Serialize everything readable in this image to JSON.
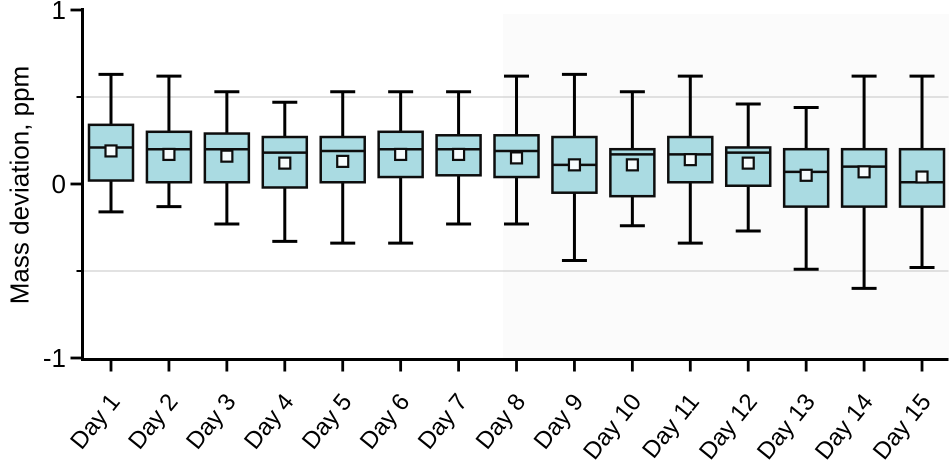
{
  "figure": {
    "background_color": "#ffffff",
    "right_region_tint": "rgba(0,0,0,0.016)"
  },
  "chart_data": {
    "type": "boxplot",
    "title": "",
    "xlabel": "",
    "ylabel": "Mass deviation, ppm",
    "ylim": [
      -1,
      1
    ],
    "ytick_major_values": [
      1,
      0,
      -1
    ],
    "ytick_major_labels": [
      "1",
      "0",
      "-1"
    ],
    "ytick_minor_values": [
      0.5,
      -0.5
    ],
    "gridline_values": [
      0.5,
      -0.5
    ],
    "grid_on": true,
    "legend": "none",
    "grid_color": "#d8d8d8",
    "axis_color": "#000000",
    "box_fill_color": "#aadbe2",
    "box_stroke_color": "#0d0d0d",
    "mean_marker_fill": "#f7fcfd",
    "mean_marker_shape": "open-square",
    "categories": [
      "Day 1",
      "Day 2",
      "Day 3",
      "Day 4",
      "Day 5",
      "Day 6",
      "Day 7",
      "Day 8",
      "Day 9",
      "Day 10",
      "Day 11",
      "Day 12",
      "Day 13",
      "Day 14",
      "Day 15"
    ],
    "series": [
      {
        "name": "Day 1",
        "whisker_low": -0.16,
        "q1": 0.02,
        "median": 0.21,
        "mean": 0.19,
        "q3": 0.34,
        "whisker_high": 0.63
      },
      {
        "name": "Day 2",
        "whisker_low": -0.13,
        "q1": 0.01,
        "median": 0.2,
        "mean": 0.17,
        "q3": 0.3,
        "whisker_high": 0.62
      },
      {
        "name": "Day 3",
        "whisker_low": -0.23,
        "q1": 0.01,
        "median": 0.2,
        "mean": 0.16,
        "q3": 0.29,
        "whisker_high": 0.53
      },
      {
        "name": "Day 4",
        "whisker_low": -0.33,
        "q1": -0.02,
        "median": 0.18,
        "mean": 0.12,
        "q3": 0.27,
        "whisker_high": 0.47
      },
      {
        "name": "Day 5",
        "whisker_low": -0.34,
        "q1": 0.01,
        "median": 0.19,
        "mean": 0.13,
        "q3": 0.27,
        "whisker_high": 0.53
      },
      {
        "name": "Day 6",
        "whisker_low": -0.34,
        "q1": 0.04,
        "median": 0.2,
        "mean": 0.17,
        "q3": 0.3,
        "whisker_high": 0.53
      },
      {
        "name": "Day 7",
        "whisker_low": -0.23,
        "q1": 0.05,
        "median": 0.2,
        "mean": 0.17,
        "q3": 0.28,
        "whisker_high": 0.53
      },
      {
        "name": "Day 8",
        "whisker_low": -0.23,
        "q1": 0.04,
        "median": 0.19,
        "mean": 0.15,
        "q3": 0.28,
        "whisker_high": 0.62
      },
      {
        "name": "Day 9",
        "whisker_low": -0.44,
        "q1": -0.05,
        "median": 0.11,
        "mean": 0.11,
        "q3": 0.27,
        "whisker_high": 0.63
      },
      {
        "name": "Day 10",
        "whisker_low": -0.24,
        "q1": -0.07,
        "median": 0.17,
        "mean": 0.11,
        "q3": 0.2,
        "whisker_high": 0.53
      },
      {
        "name": "Day 11",
        "whisker_low": -0.34,
        "q1": 0.01,
        "median": 0.17,
        "mean": 0.14,
        "q3": 0.27,
        "whisker_high": 0.62
      },
      {
        "name": "Day 12",
        "whisker_low": -0.27,
        "q1": -0.01,
        "median": 0.18,
        "mean": 0.12,
        "q3": 0.21,
        "whisker_high": 0.46
      },
      {
        "name": "Day 13",
        "whisker_low": -0.49,
        "q1": -0.13,
        "median": 0.07,
        "mean": 0.05,
        "q3": 0.2,
        "whisker_high": 0.44
      },
      {
        "name": "Day 14",
        "whisker_low": -0.6,
        "q1": -0.13,
        "median": 0.1,
        "mean": 0.07,
        "q3": 0.2,
        "whisker_high": 0.62
      },
      {
        "name": "Day 15",
        "whisker_low": -0.48,
        "q1": -0.13,
        "median": 0.01,
        "mean": 0.04,
        "q3": 0.2,
        "whisker_high": 0.62
      }
    ]
  }
}
